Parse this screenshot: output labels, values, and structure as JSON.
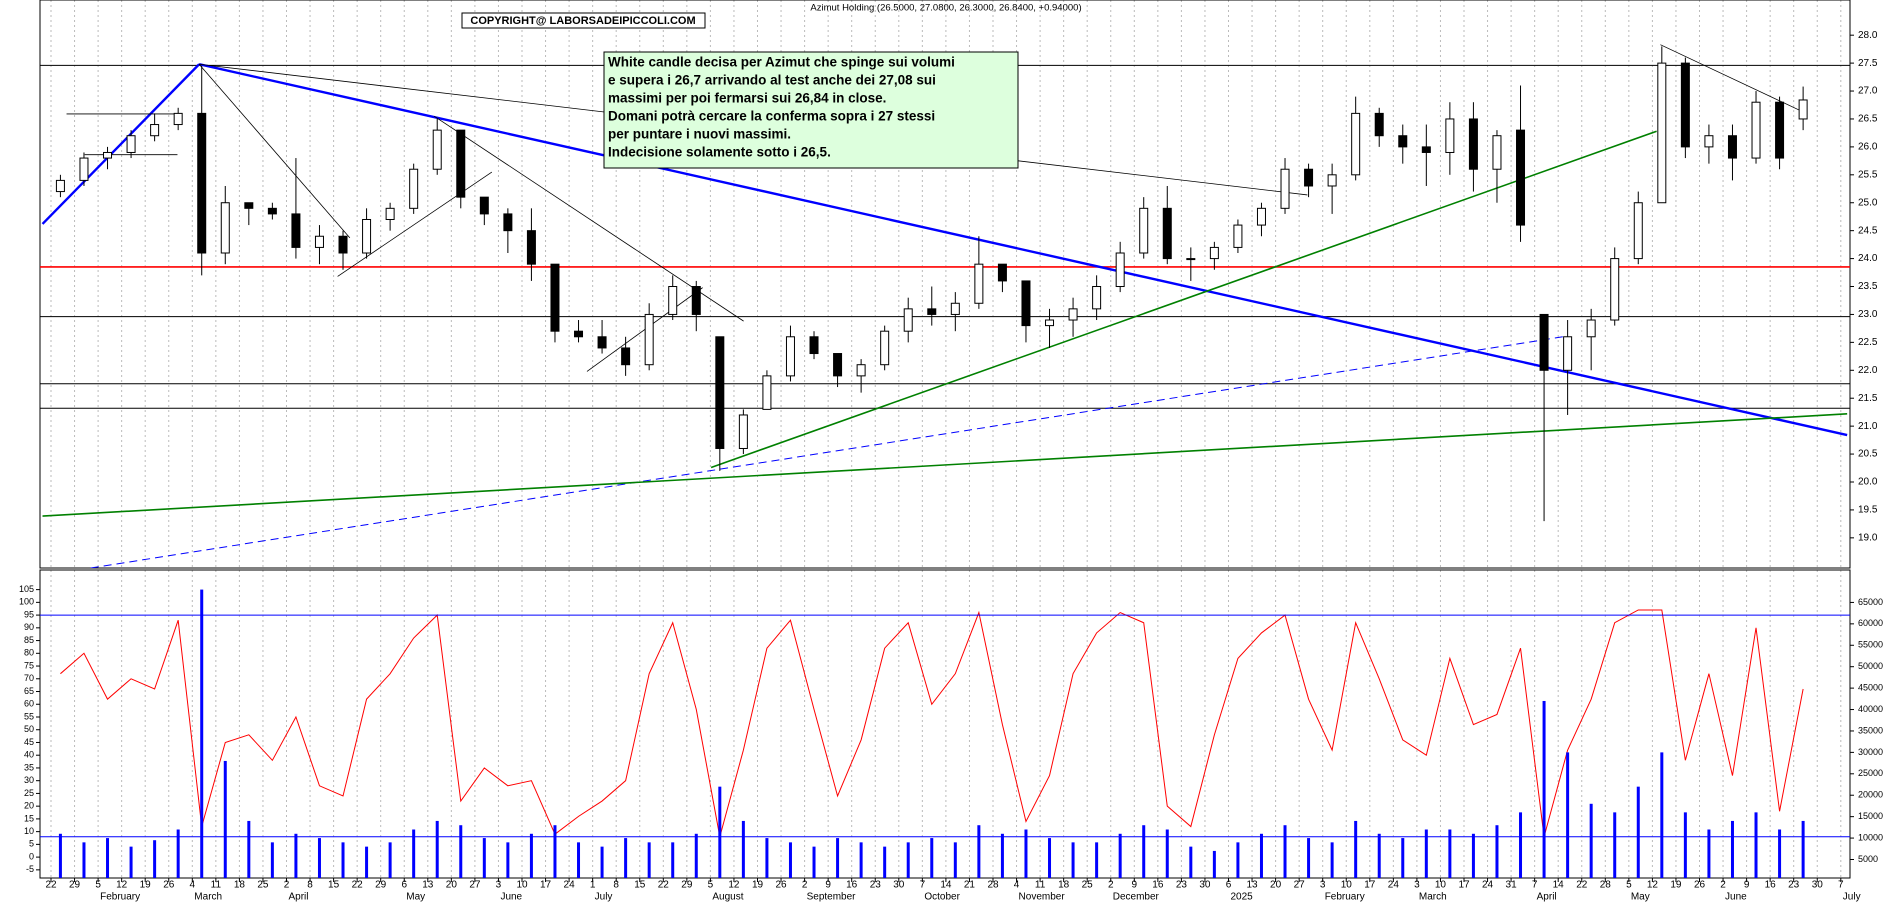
{
  "header": "Azimut Holding (26.5000, 27.0800, 26.3000, 26.8400, +0.94000)",
  "copyright": "COPYRIGHT@ LABORSADEIPICCOLI.COM",
  "annotation": [
    "White candle decisa per Azimut che spinge sui volumi",
    "e supera i 26,7 arrivando al test anche dei 27,08 sui",
    "massimi per poi fermarsi sui 26,84 in close.",
    "Domani potrà cercare la conferma sopra i 27 stessi",
    "per puntare i nuovi massimi.",
    "Indecisione solamente sotto i 26,5."
  ],
  "chart_data": [
    {
      "type": "candlestick",
      "up_color": "#ffffff",
      "down_color": "#000000",
      "open": [
        25.2,
        25.4,
        25.8,
        25.9,
        26.2,
        26.4,
        26.6,
        24.1,
        25.0,
        24.9,
        24.8,
        24.2,
        24.4,
        24.1,
        24.7,
        24.9,
        25.6,
        26.3,
        25.1,
        24.8,
        24.5,
        23.9,
        22.7,
        22.6,
        22.4,
        22.1,
        23.0,
        23.5,
        22.6,
        20.6,
        21.3,
        21.9,
        22.6,
        22.3,
        21.9,
        22.1,
        22.7,
        23.1,
        23.0,
        23.2,
        23.9,
        23.6,
        22.8,
        22.9,
        23.1,
        23.5,
        24.1,
        24.9,
        24.0,
        24.0,
        24.2,
        24.6,
        24.9,
        25.6,
        25.3,
        25.5,
        26.6,
        26.2,
        26.0,
        25.9,
        26.5,
        25.6,
        26.3,
        23.0,
        22.0,
        22.6,
        22.9,
        24.0,
        25.0,
        27.5,
        26.0,
        26.2,
        25.8,
        26.8,
        26.5,
        null,
        null
      ],
      "high": [
        25.5,
        25.9,
        26.0,
        26.3,
        26.6,
        26.7,
        27.45,
        25.3,
        25.0,
        25.0,
        25.8,
        24.6,
        24.5,
        24.9,
        25.0,
        25.7,
        26.5,
        26.3,
        25.1,
        24.9,
        24.9,
        23.9,
        22.9,
        22.9,
        22.6,
        23.2,
        23.7,
        23.6,
        22.6,
        21.3,
        22.0,
        22.8,
        22.7,
        22.3,
        22.2,
        22.8,
        23.3,
        23.5,
        23.4,
        24.4,
        23.9,
        23.6,
        23.1,
        23.3,
        23.7,
        24.3,
        25.1,
        25.3,
        24.2,
        24.3,
        24.7,
        25.0,
        25.8,
        25.7,
        25.7,
        26.9,
        26.7,
        26.4,
        26.4,
        26.8,
        26.8,
        26.3,
        27.1,
        23.0,
        22.9,
        23.1,
        24.2,
        25.2,
        27.8,
        27.6,
        26.4,
        26.4,
        27.0,
        26.9,
        27.08,
        null,
        null
      ],
      "low": [
        25.1,
        25.3,
        25.6,
        25.8,
        26.1,
        26.3,
        23.7,
        23.9,
        24.6,
        24.7,
        24.0,
        23.9,
        23.8,
        24.0,
        24.5,
        24.8,
        25.5,
        24.9,
        24.6,
        24.1,
        23.6,
        22.5,
        22.5,
        22.3,
        21.9,
        22.0,
        22.9,
        22.7,
        20.2,
        20.5,
        21.3,
        21.8,
        22.2,
        21.7,
        21.6,
        22.0,
        22.5,
        22.8,
        22.7,
        23.1,
        23.4,
        22.5,
        22.4,
        22.6,
        22.9,
        23.4,
        24.0,
        23.9,
        23.6,
        23.8,
        24.1,
        24.4,
        24.8,
        25.1,
        24.8,
        25.4,
        26.0,
        25.7,
        25.3,
        25.5,
        25.2,
        25.0,
        24.3,
        19.3,
        21.2,
        22.0,
        22.8,
        23.9,
        25.0,
        25.8,
        25.7,
        25.4,
        25.7,
        25.6,
        26.3,
        null,
        null
      ],
      "close": [
        25.4,
        25.8,
        25.9,
        26.2,
        26.4,
        26.6,
        24.1,
        25.0,
        24.9,
        24.8,
        24.2,
        24.4,
        24.1,
        24.7,
        24.9,
        25.6,
        26.3,
        25.1,
        24.8,
        24.5,
        23.9,
        22.7,
        22.6,
        22.4,
        22.1,
        23.0,
        23.5,
        23.0,
        20.6,
        21.2,
        21.9,
        22.6,
        22.3,
        21.9,
        22.1,
        22.7,
        23.1,
        23.0,
        23.2,
        23.9,
        23.6,
        22.8,
        22.9,
        23.1,
        23.5,
        24.1,
        24.9,
        24.0,
        24.0,
        24.2,
        24.6,
        24.9,
        25.6,
        25.3,
        25.5,
        26.6,
        26.2,
        26.0,
        25.9,
        26.5,
        25.6,
        26.2,
        24.6,
        22.0,
        22.6,
        22.9,
        24.0,
        25.0,
        27.5,
        26.0,
        26.2,
        25.8,
        26.8,
        25.8,
        26.84,
        null,
        null
      ],
      "ylim": [
        18.46,
        28.63
      ],
      "yticks": [
        {
          "value": 19,
          "label": "19.0"
        },
        {
          "value": 19.5,
          "label": "19.5"
        },
        {
          "value": 20,
          "label": "20.0"
        },
        {
          "value": 20.5,
          "label": "20.5"
        },
        {
          "value": 21,
          "label": "21.0"
        },
        {
          "value": 21.5,
          "label": "21.5"
        },
        {
          "value": 22,
          "label": "22.0"
        },
        {
          "value": 22.5,
          "label": "22.5"
        },
        {
          "value": 23,
          "label": "23.0"
        },
        {
          "value": 23.5,
          "label": "23.5"
        },
        {
          "value": 24,
          "label": "24.0"
        },
        {
          "value": 24.5,
          "label": "24.5"
        },
        {
          "value": 25,
          "label": "25.0"
        },
        {
          "value": 25.5,
          "label": "25.5"
        },
        {
          "value": 26,
          "label": "26.0"
        },
        {
          "value": 26.5,
          "label": "26.5"
        },
        {
          "value": 27,
          "label": "27.0"
        },
        {
          "value": 27.5,
          "label": "27.5"
        },
        {
          "value": 28,
          "label": "28.0"
        }
      ],
      "levels": [
        {
          "value": 27.46,
          "color": "#000000"
        },
        {
          "value": 23.85,
          "color": "#ff0000"
        },
        {
          "value": 22.96,
          "color": "#000000"
        },
        {
          "value": 21.76,
          "color": "#000000"
        },
        {
          "value": 21.32,
          "color": "#000000"
        }
      ],
      "trendlines": [
        {
          "x": [
            -0.36,
            6.29
          ],
          "y": [
            24.62,
            27.48
          ],
          "color": "#0000ff",
          "style": "thick"
        },
        {
          "x": [
            6.29,
            76.27
          ],
          "y": [
            27.48,
            20.84
          ],
          "color": "#0000ff",
          "style": "thick"
        },
        {
          "x": [
            1.69,
            64.35
          ],
          "y": [
            18.46,
            22.61
          ],
          "color": "#0000ff",
          "style": "dashed"
        },
        {
          "x": [
            -0.36,
            76.27
          ],
          "y": [
            19.39,
            21.22
          ],
          "color": "#008000",
          "style": "medium"
        },
        {
          "x": [
            28.03,
            68.18
          ],
          "y": [
            20.26,
            26.28
          ],
          "color": "#008000",
          "style": "medium"
        },
        {
          "x": [
            6.29,
            12.69
          ],
          "y": [
            27.48,
            24.37
          ],
          "color": "#000000",
          "style": "thin"
        },
        {
          "x": [
            6.29,
            53.35
          ],
          "y": [
            27.48,
            25.14
          ],
          "color": "#000000",
          "style": "thin"
        },
        {
          "x": [
            16.27,
            29.41
          ],
          "y": [
            26.55,
            22.88
          ],
          "color": "#000000",
          "style": "thin"
        },
        {
          "x": [
            12.17,
            18.72
          ],
          "y": [
            23.68,
            25.55
          ],
          "color": "#000000",
          "style": "thin"
        },
        {
          "x": [
            22.76,
            27.67
          ],
          "y": [
            21.98,
            23.48
          ],
          "color": "#000000",
          "style": "thin"
        },
        {
          "x": [
            68.34,
            74.58
          ],
          "y": [
            27.83,
            26.59
          ],
          "color": "#000000",
          "style": "thin"
        },
        {
          "x": [
            0.66,
            5.37
          ],
          "y": [
            26.59,
            26.59
          ],
          "color": "#000000",
          "style": "thin"
        },
        {
          "x": [
            1.43,
            5.37
          ],
          "y": [
            25.86,
            25.86
          ],
          "color": "#000000",
          "style": "thin"
        }
      ]
    },
    {
      "type": "combo",
      "categories": [
        "22",
        "29",
        "5",
        "12",
        "19",
        "26",
        "4",
        "11",
        "18",
        "25",
        "2",
        "8",
        "15",
        "22",
        "29",
        "6",
        "13",
        "20",
        "27",
        "3",
        "10",
        "17",
        "24",
        "1",
        "8",
        "15",
        "22",
        "29",
        "5",
        "12",
        "19",
        "26",
        "2",
        "9",
        "16",
        "23",
        "30",
        "7",
        "14",
        "21",
        "28",
        "4",
        "11",
        "18",
        "25",
        "2",
        "9",
        "16",
        "23",
        "30",
        "6",
        "13",
        "20",
        "27",
        "3",
        "10",
        "17",
        "24",
        "3",
        "10",
        "17",
        "24",
        "31",
        "7",
        "14",
        "22",
        "28",
        "5",
        "12",
        "19",
        "26",
        "2",
        "9",
        "16",
        "23",
        "30",
        "7"
      ],
      "x_months": [
        null,
        null,
        "February",
        null,
        null,
        null,
        "March",
        null,
        null,
        null,
        "April",
        null,
        null,
        null,
        null,
        "May",
        null,
        null,
        null,
        "June",
        null,
        null,
        null,
        "July",
        null,
        null,
        null,
        null,
        "August",
        null,
        null,
        null,
        "September",
        null,
        null,
        null,
        null,
        "October",
        null,
        null,
        null,
        "November",
        null,
        null,
        null,
        "December",
        null,
        null,
        null,
        null,
        "2025",
        null,
        null,
        null,
        "February",
        null,
        null,
        null,
        "March",
        null,
        null,
        null,
        null,
        "April",
        null,
        null,
        null,
        "May",
        null,
        null,
        null,
        "June",
        null,
        null,
        null,
        null,
        "July"
      ],
      "series": [
        {
          "type": "line",
          "color": "#ff0000",
          "values": [
            72,
            80,
            62,
            70,
            66,
            93,
            12,
            45,
            48,
            38,
            55,
            28,
            24,
            62,
            72,
            86,
            95,
            22,
            35,
            28,
            30,
            9,
            16,
            22,
            30,
            72,
            92,
            58,
            8,
            42,
            82,
            93,
            58,
            24,
            46,
            82,
            92,
            60,
            72,
            96,
            52,
            14,
            32,
            72,
            88,
            96,
            92,
            20,
            12,
            48,
            78,
            88,
            95,
            62,
            42,
            92,
            70,
            46,
            40,
            78,
            52,
            56,
            82,
            8,
            42,
            62,
            92,
            97,
            97,
            38,
            72,
            32,
            90,
            18,
            66,
            null,
            null
          ]
        },
        {
          "type": "bar",
          "color": "#0000ff",
          "axis": "y2",
          "values": [
            11000,
            9000,
            10000,
            8000,
            9500,
            12000,
            68000,
            28000,
            14000,
            9000,
            11000,
            10000,
            9000,
            8000,
            9000,
            12000,
            14000,
            13000,
            10000,
            9000,
            11000,
            13000,
            9000,
            8000,
            10000,
            9000,
            9000,
            11000,
            22000,
            14000,
            10000,
            9000,
            8000,
            10000,
            9000,
            8000,
            9000,
            10000,
            9000,
            13000,
            11000,
            12000,
            10000,
            9000,
            9000,
            11000,
            13000,
            12000,
            8000,
            7000,
            9000,
            11000,
            13000,
            10000,
            9000,
            14000,
            11000,
            10000,
            12000,
            12000,
            11000,
            13000,
            16000,
            42000,
            30000,
            18000,
            16000,
            22000,
            30000,
            16000,
            12000,
            14000,
            16000,
            12000,
            14000,
            null,
            null
          ]
        }
      ],
      "hlines": [
        95,
        8
      ],
      "hline_color": "#0000ff",
      "ylim": [
        -8.2,
        112.7
      ],
      "yticks": [
        -5,
        0,
        5,
        10,
        15,
        20,
        25,
        30,
        35,
        40,
        45,
        50,
        55,
        60,
        65,
        70,
        75,
        80,
        85,
        90,
        95,
        100,
        105
      ],
      "y2lim": [
        680,
        72570
      ],
      "y2ticks": [
        5000,
        10000,
        15000,
        20000,
        25000,
        30000,
        35000,
        40000,
        45000,
        50000,
        55000,
        60000,
        65000
      ],
      "grid": true
    }
  ]
}
